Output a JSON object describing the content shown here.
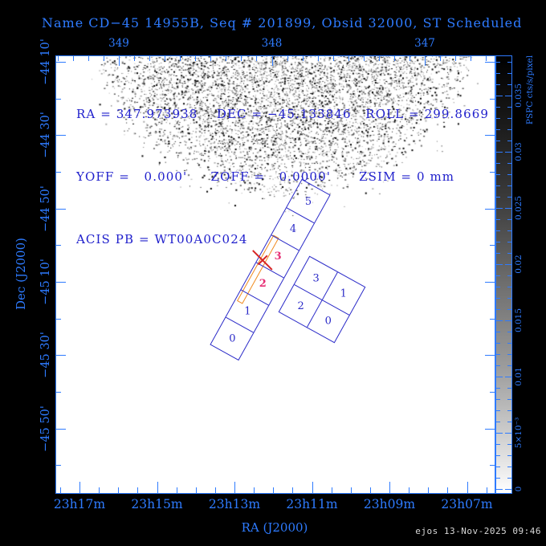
{
  "window": {
    "title": "Name CD−45 14955B, Seq # 201899, Obsid 32000, ST Scheduled",
    "footer_timestamp": "ejos 13-Nov-2025 09:46"
  },
  "status_lines": [
    "RA = 347.973938    DEC = −45.133846   ROLL = 299.8669",
    "YOFF =   0.000'     ZOFF =   0.0000'      ZSIM = 0 mm",
    "ACIS PB = WT00A0C024"
  ],
  "chart_data": {
    "type": "heatmap",
    "title": "Name CD−45 14955B, Seq # 201899, Obsid 32000, ST Scheduled",
    "xlabel": "RA (J2000)",
    "ylabel": "Dec (J2000)",
    "top_axis": {
      "unit": "degrees RA",
      "ticks": [
        "349",
        "348",
        "347"
      ]
    },
    "bottom_axis": {
      "unit": "RA h m",
      "ticks": [
        "23h17m",
        "23h15m",
        "23h13m",
        "23h11m",
        "23h09m",
        "23h07m"
      ]
    },
    "left_axis": {
      "unit": "Dec deg arcmin",
      "ticks": [
        "−44 10'",
        "−44 30'",
        "−44 50'",
        "−45 10'",
        "−45 30'",
        "−45 50'"
      ]
    },
    "colorbar": {
      "title": "PSPC cts/s/pixel",
      "tick_labels": [
        "0.035",
        "0.03",
        "0.025",
        "0.02",
        "0.015",
        "0.01",
        "5×10⁻³",
        "0"
      ],
      "min": 0,
      "max": 0.0385,
      "scale": "grayscale, black = high, white = zero"
    },
    "pointing": {
      "ra_deg": 347.973938,
      "dec_deg": -45.133846,
      "roll_deg": 299.8669,
      "yoff_arcmin": 0.0,
      "zoff_arcmin": 0.0,
      "zsim_mm": 0,
      "acis_pb": "WT00A0C024"
    },
    "detectors": {
      "acis_s": {
        "chips_bottom_to_top": [
          "0",
          "1",
          "2",
          "3",
          "4",
          "5"
        ],
        "active_chips": [
          "2",
          "3"
        ]
      },
      "acis_i": {
        "chips_grid": [
          [
            "3",
            "1"
          ],
          [
            "2",
            "0"
          ]
        ]
      }
    },
    "background_image": "ROSAT PSPC dithered count-rate field (dense stippled disk covering upper half of plot)"
  },
  "colors": {
    "bg": "#000000",
    "plot_bg": "#ffffff",
    "frame_blue": "#2e7bff",
    "text_blue": "#2020cc",
    "chip_blue": "#2a2ac8",
    "magenta": "#e62e74",
    "orange": "#f08a1e",
    "red": "#d62424",
    "footer_gray": "#d8d8d8"
  }
}
